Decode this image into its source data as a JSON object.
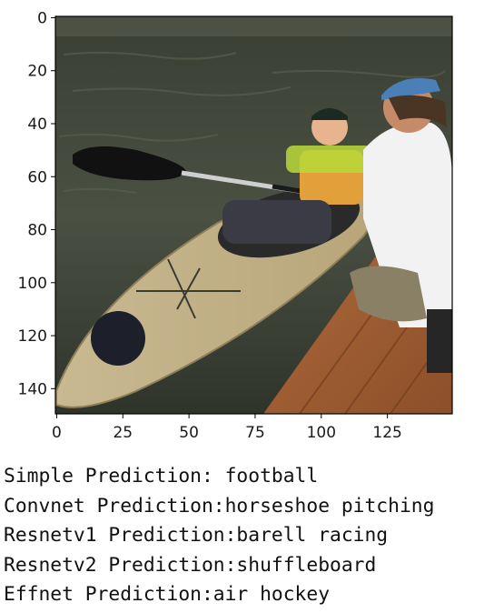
{
  "plot": {
    "xticks": [
      0,
      25,
      50,
      75,
      100,
      125
    ],
    "yticks": [
      0,
      20,
      40,
      60,
      80,
      100,
      120,
      140
    ],
    "xlim": [
      -0.5,
      149.5
    ],
    "ylim": [
      149.5,
      -0.5
    ]
  },
  "image": {
    "description_icon": "kayak-photo-icon"
  },
  "predictions": [
    {
      "model": "Simple",
      "text": "Simple Prediction: football"
    },
    {
      "model": "Convnet",
      "text": "Convnet Prediction:horseshoe pitching"
    },
    {
      "model": "Resnetv1",
      "text": "Resnetv1 Prediction:barell racing"
    },
    {
      "model": "Resnetv2",
      "text": "Resnetv2 Prediction:shuffleboard"
    },
    {
      "model": "Effnet",
      "text": "Effnet Prediction:air hockey"
    }
  ]
}
